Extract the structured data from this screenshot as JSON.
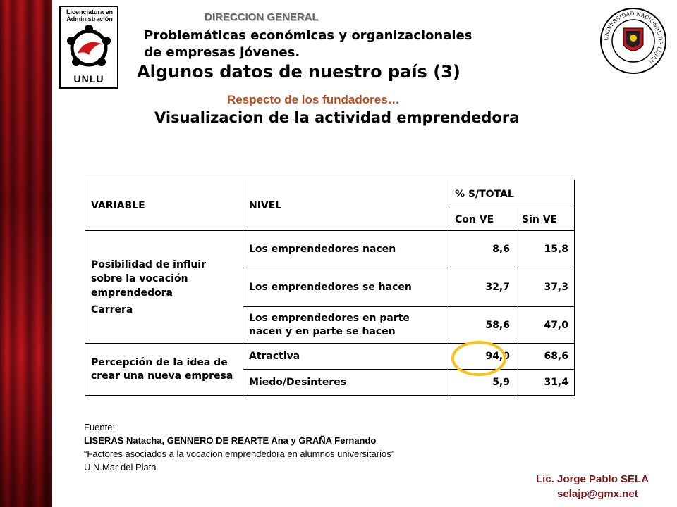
{
  "header": {
    "direccion": "DIRECCION GENERAL",
    "subtitle_line1": "Problemáticas económicas y organizacionales",
    "subtitle_line2": "de empresas jóvenes.",
    "title": "Algunos datos de nuestro país (3)",
    "respecto": "Respecto de los fundadores…",
    "section_title": "Visualizacion de la actividad emprendedora"
  },
  "logos": {
    "left_text_line1": "Licenciatura en",
    "left_text_line2": "Administración",
    "left_unlu": "UNLU",
    "seal_text": "UNIVERSIDAD NACIONAL DE LUJAN"
  },
  "table": {
    "headers": {
      "variable": "VARIABLE",
      "nivel": "NIVEL",
      "pct_total": "% S/TOTAL",
      "con_ve": "Con VE",
      "sin_ve": "Sin VE"
    },
    "group1": {
      "variable_line1": "Posibilidad de influir sobre la vocación emprendedora",
      "variable_line2": "Carrera",
      "rows": [
        {
          "nivel": "Los emprendedores nacen",
          "con_ve": "8,6",
          "sin_ve": "15,8"
        },
        {
          "nivel": "Los emprendedores se hacen",
          "con_ve": "32,7",
          "sin_ve": "37,3"
        },
        {
          "nivel": "Los emprendedores en parte nacen y en parte se hacen",
          "con_ve": "58,6",
          "sin_ve": "47,0"
        }
      ]
    },
    "group2": {
      "variable": "Percepción de la idea de crear una nueva empresa",
      "rows": [
        {
          "nivel": "Atractiva",
          "con_ve": "94,0",
          "sin_ve": "68,6"
        },
        {
          "nivel": "Miedo/Desinteres",
          "con_ve": "5,9",
          "sin_ve": "31,4"
        }
      ]
    }
  },
  "source": {
    "label": "Fuente:",
    "authors": "LISERAS Natacha, GENNERO DE REARTE Ana y GRAÑA Fernando",
    "work": "“Factores asociados a la vocacion emprendedora en alumnos universitarios”",
    "place": "U.N.Mar del Plata"
  },
  "footer": {
    "author": "Lic. Jorge Pablo SELA",
    "email": "selajp@gmx.net"
  },
  "colors": {
    "curtain": "#b0121a",
    "respecto": "#b84a1e",
    "highlight": "#f7c31a",
    "author": "#7a1a1a"
  }
}
